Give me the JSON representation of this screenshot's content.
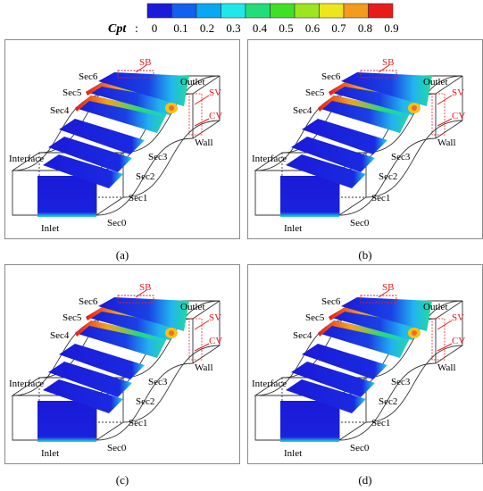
{
  "colorbar": {
    "label": "Cpt",
    "ticks": [
      "0",
      "0.1",
      "0.2",
      "0.3",
      "0.4",
      "0.5",
      "0.6",
      "0.7",
      "0.8",
      "0.9"
    ],
    "colors": [
      "#1a1ad8",
      "#1160ee",
      "#0aa7f2",
      "#21e8e8",
      "#22dd7a",
      "#40e026",
      "#9be61e",
      "#eee61c",
      "#f49a1c",
      "#e81b1b"
    ]
  },
  "labels": {
    "inlet": "Inlet",
    "interface": "Interface",
    "outlet": "Outlet",
    "wall": "Wall",
    "sec0": "Sec0",
    "sec1": "Sec1",
    "sec2": "Sec2",
    "sec3": "Sec3",
    "sec4": "Sec4",
    "sec5": "Sec5",
    "sec6": "Sec6",
    "sb": "SB",
    "sv": "SV",
    "cv": "CV"
  },
  "panels": [
    {
      "caption": "(a)"
    },
    {
      "caption": "(b)"
    },
    {
      "caption": "(c)"
    },
    {
      "caption": "(d)"
    }
  ]
}
